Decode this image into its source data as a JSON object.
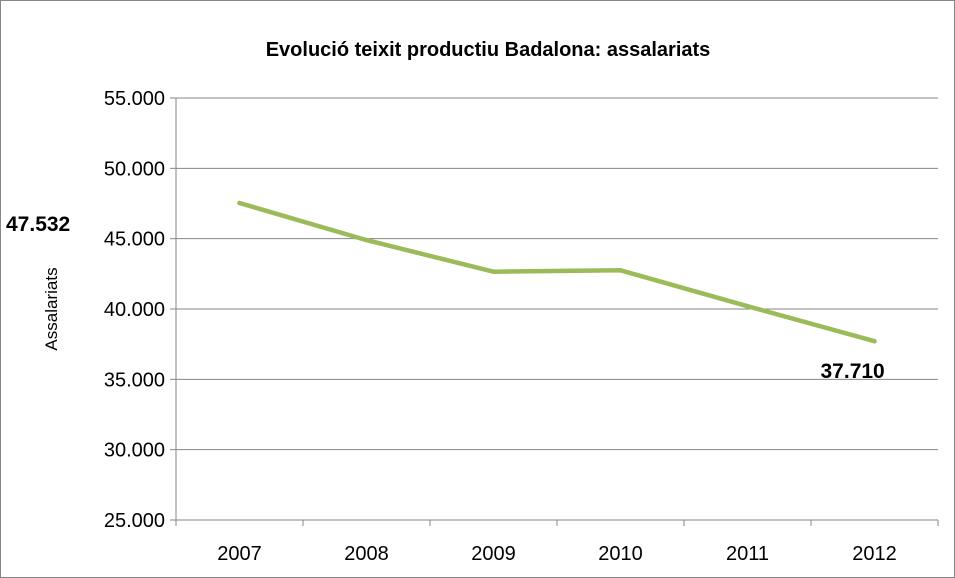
{
  "chart_data": {
    "type": "line",
    "title": "Evolució teixit productiu Badalona: assalariats",
    "xlabel": "",
    "ylabel": "Assalariats",
    "categories": [
      "2007",
      "2008",
      "2009",
      "2010",
      "2011",
      "2012"
    ],
    "series": [
      {
        "values": [
          47532,
          44900,
          42650,
          42750,
          40200,
          37710
        ],
        "color": "#9BBB59"
      }
    ],
    "data_labels": [
      {
        "index": 0,
        "text": "47.532"
      },
      {
        "index": 5,
        "text": "37.710"
      }
    ],
    "ylim": [
      25000,
      55000
    ],
    "yticks": [
      25000,
      30000,
      35000,
      40000,
      45000,
      50000,
      55000
    ],
    "ytick_labels": [
      "25.000",
      "30.000",
      "35.000",
      "40.000",
      "45.000",
      "50.000",
      "55.000"
    ],
    "grid": true,
    "legend": "none"
  }
}
